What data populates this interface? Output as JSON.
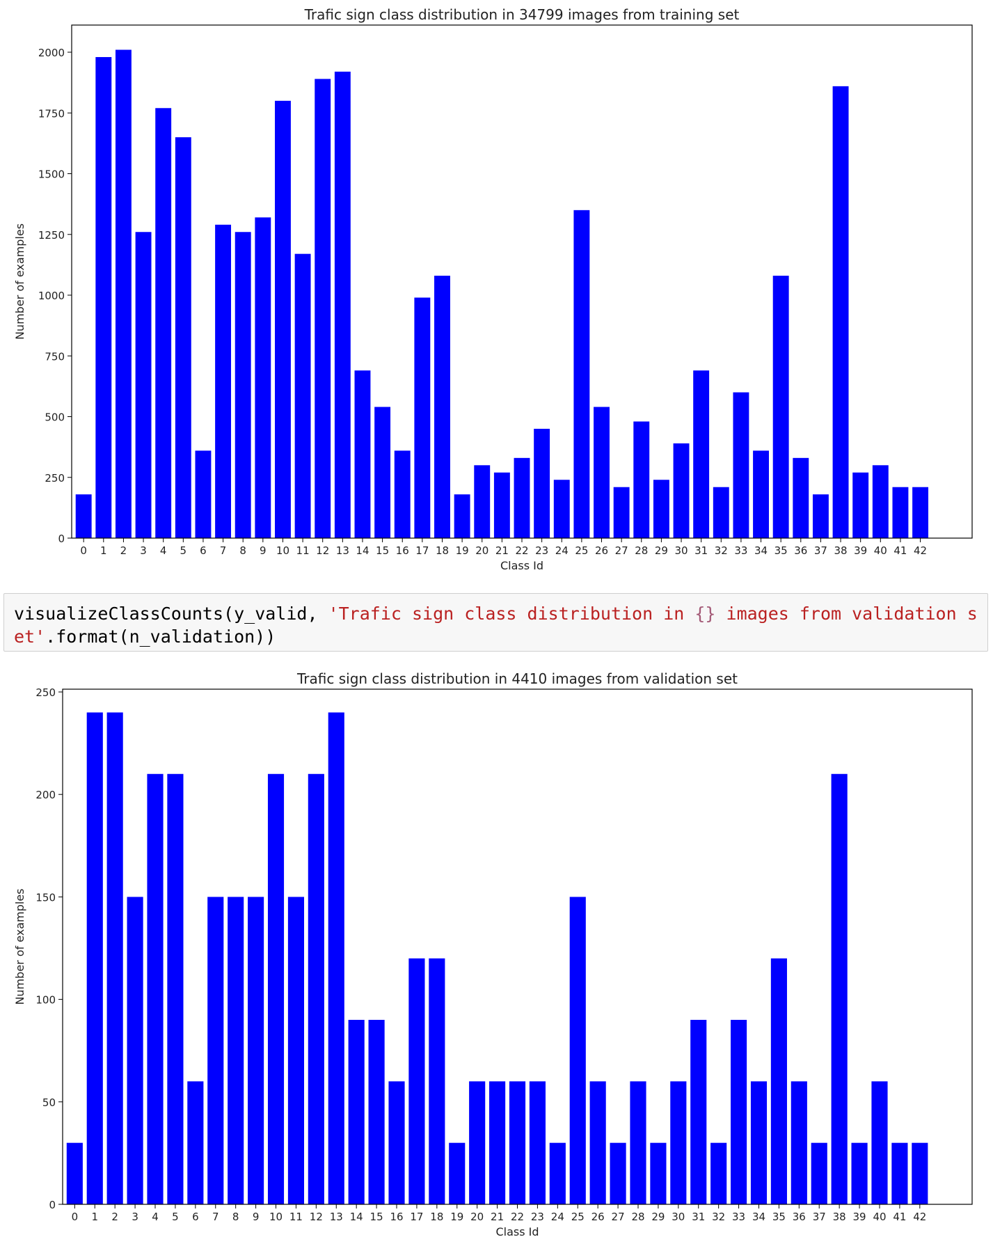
{
  "code_cell": {
    "func": "visualizeClassCounts",
    "open_paren": "(",
    "arg1": "y_valid, ",
    "string_part1": "'Trafic sign class distribution in ",
    "string_braces": "{}",
    "string_part2": " images from validation set'",
    "method": ".format(n_validation))"
  },
  "colors": {
    "bar": "#0000ff",
    "axis": "#000000",
    "code_bg": "#f7f7f7",
    "string": "#ba2121"
  },
  "chart_data": [
    {
      "type": "bar",
      "title": "Trafic sign class distribution in 34799 images from training set",
      "xlabel": "Class Id",
      "ylabel": "Number of examples",
      "ylim": [
        0,
        2000
      ],
      "yticks": [
        0,
        250,
        500,
        750,
        1000,
        1250,
        1500,
        1750,
        2000
      ],
      "categories": [
        "0",
        "1",
        "2",
        "3",
        "4",
        "5",
        "6",
        "7",
        "8",
        "9",
        "10",
        "11",
        "12",
        "13",
        "14",
        "15",
        "16",
        "17",
        "18",
        "19",
        "20",
        "21",
        "22",
        "23",
        "24",
        "25",
        "26",
        "27",
        "28",
        "29",
        "30",
        "31",
        "32",
        "33",
        "34",
        "35",
        "36",
        "37",
        "38",
        "39",
        "40",
        "41",
        "42"
      ],
      "values": [
        180,
        1980,
        2010,
        1260,
        1770,
        1650,
        360,
        1290,
        1260,
        1320,
        1800,
        1170,
        1890,
        1920,
        690,
        540,
        360,
        990,
        1080,
        180,
        300,
        270,
        330,
        450,
        240,
        1350,
        540,
        210,
        480,
        240,
        390,
        690,
        210,
        600,
        360,
        1080,
        330,
        180,
        1860,
        270,
        300,
        210,
        210
      ],
      "grid": false,
      "bar_color": "#0000ff"
    },
    {
      "type": "bar",
      "title": "Trafic sign class distribution in 4410 images from validation set",
      "xlabel": "Class Id",
      "ylabel": "Number of examples",
      "ylim": [
        0,
        250
      ],
      "yticks": [
        0,
        50,
        100,
        150,
        200,
        250
      ],
      "categories": [
        "0",
        "1",
        "2",
        "3",
        "4",
        "5",
        "6",
        "7",
        "8",
        "9",
        "10",
        "11",
        "12",
        "13",
        "14",
        "15",
        "16",
        "17",
        "18",
        "19",
        "20",
        "21",
        "22",
        "23",
        "24",
        "25",
        "26",
        "27",
        "28",
        "29",
        "30",
        "31",
        "32",
        "33",
        "34",
        "35",
        "36",
        "37",
        "38",
        "39",
        "40",
        "41",
        "42"
      ],
      "values": [
        30,
        240,
        240,
        150,
        210,
        210,
        60,
        150,
        150,
        150,
        210,
        150,
        210,
        240,
        90,
        90,
        60,
        120,
        120,
        30,
        60,
        60,
        60,
        60,
        30,
        150,
        60,
        30,
        60,
        30,
        60,
        90,
        30,
        90,
        60,
        120,
        60,
        30,
        210,
        30,
        60,
        30,
        30
      ],
      "grid": false,
      "bar_color": "#0000ff"
    }
  ]
}
